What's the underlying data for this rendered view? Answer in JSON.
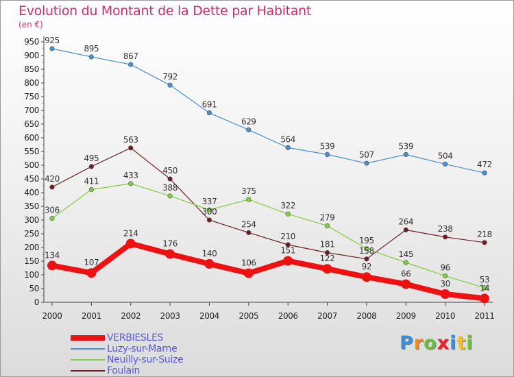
{
  "title": "Evolution du Montant de la Dette par Habitant",
  "unit_label": "(en €)",
  "logo": {
    "text": "Proxiti",
    "letters": [
      {
        "ch": "P",
        "color": "#3a8fd6"
      },
      {
        "ch": "r",
        "color": "#f08a1c"
      },
      {
        "ch": "o",
        "color": "#6cbf3a"
      },
      {
        "ch": "x",
        "color": "#e5232a"
      },
      {
        "ch": "i",
        "color": "#3a8fd6"
      },
      {
        "ch": "t",
        "color": "#f5c41c"
      },
      {
        "ch": "i",
        "color": "#6cbf3a"
      }
    ]
  },
  "chart_data": {
    "type": "line",
    "title": "Evolution du Montant de la Dette par Habitant",
    "ylabel": "(en €)",
    "xlabel": "",
    "x": [
      "2000",
      "2001",
      "2002",
      "2003",
      "2004",
      "2005",
      "2006",
      "2007",
      "2008",
      "2009",
      "2010",
      "2011"
    ],
    "ylim": [
      0,
      950
    ],
    "yticks": [
      0,
      50,
      100,
      150,
      200,
      250,
      300,
      350,
      400,
      450,
      500,
      550,
      600,
      650,
      700,
      750,
      800,
      850,
      900,
      950
    ],
    "grid": false,
    "legend_position": "bottom-left",
    "series": [
      {
        "name": "Luzy-sur-Marne",
        "color": "#4a8fd0",
        "values": [
          925,
          895,
          867,
          792,
          691,
          629,
          564,
          539,
          507,
          539,
          504,
          472
        ]
      },
      {
        "name": "Foulain",
        "color": "#6b1d22",
        "values": [
          420,
          495,
          563,
          450,
          300,
          254,
          210,
          181,
          158,
          264,
          238,
          218
        ]
      },
      {
        "name": "Neuilly-sur-Suize",
        "color": "#7fce3c",
        "values": [
          306,
          411,
          433,
          388,
          337,
          375,
          322,
          279,
          195,
          145,
          96,
          53
        ]
      },
      {
        "name": "VERBIESLES",
        "color": "#ee1111",
        "values": [
          134,
          107,
          214,
          176,
          140,
          106,
          151,
          122,
          92,
          66,
          30,
          14
        ],
        "emphasis": true
      }
    ],
    "legend": [
      {
        "name": "VERBIESLES",
        "color": "#ee1111",
        "label_color": "#5b5bd6"
      },
      {
        "name": "Luzy-sur-Marne",
        "color": "#4a8fd0",
        "label_color": "#5b5bd6"
      },
      {
        "name": "Neuilly-sur-Suize",
        "color": "#7fce3c",
        "label_color": "#5b5bd6"
      },
      {
        "name": "Foulain",
        "color": "#6b1d22",
        "label_color": "#5b5bd6"
      }
    ]
  }
}
